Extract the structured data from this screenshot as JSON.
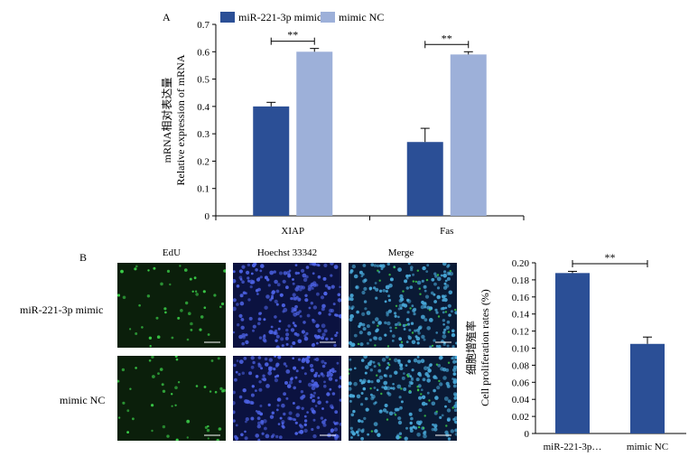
{
  "panels": {
    "a_letter": "A",
    "b_letter": "B"
  },
  "colors": {
    "dark": "#2b4f96",
    "light": "#9db0d9",
    "edu_bg": "#0b1f0b",
    "edu_dot": "#3cd24a",
    "hoechst_bg": "#0b1240",
    "hoechst_dot": "#4d63e6",
    "merge_bg": "#0a1a35",
    "merge_dot": "#48a8d8"
  },
  "images": {
    "column_headers": [
      "EdU",
      "Hoechst 33342",
      "Merge"
    ],
    "row_labels": [
      "miR-221-3p mimic",
      "mimic NC"
    ]
  },
  "chart_data": [
    {
      "type": "bar",
      "categories": [
        "XIAP",
        "Fas"
      ],
      "series": [
        {
          "name": "miR-221-3p mimic",
          "values": [
            0.4,
            0.27
          ],
          "errors": [
            0.015,
            0.05
          ]
        },
        {
          "name": "mimic NC",
          "values": [
            0.6,
            0.59
          ],
          "errors": [
            0.012,
            0.01
          ]
        }
      ],
      "ylabel_cn": "mRNA相对表达量",
      "ylabel_en": "Relative expression of mRNA",
      "ylim": [
        0,
        0.7
      ],
      "yticks": [
        "0",
        "0.1",
        "0.2",
        "0.3",
        "0.4",
        "0.5",
        "0.6",
        "0.7"
      ],
      "significance": [
        "**",
        "**"
      ],
      "legend": "top"
    },
    {
      "type": "bar",
      "categories": [
        "miR-221-3p…",
        "mimic NC"
      ],
      "values": [
        0.188,
        0.105
      ],
      "errors": [
        0.002,
        0.008
      ],
      "ylabel_cn": "细胞增殖率",
      "ylabel_en": "Cell proliferation rates (%)",
      "ylim": [
        0,
        0.2
      ],
      "yticks": [
        "0",
        "0.02",
        "0.04",
        "0.06",
        "0.08",
        "0.10",
        "0.12",
        "0.14",
        "0.16",
        "0.18",
        "0.20"
      ],
      "significance": [
        "**"
      ]
    }
  ]
}
